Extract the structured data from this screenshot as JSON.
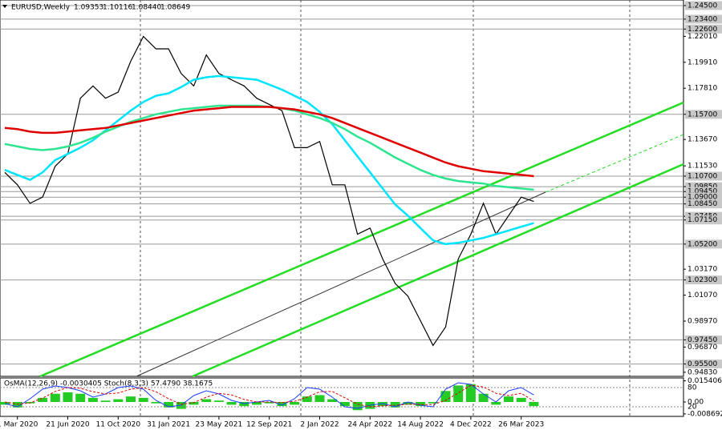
{
  "chart_data": {
    "type": "line",
    "title": "EURUSD,Weekly",
    "quote": [
      "1.09353",
      "1.10116",
      "1.08440",
      "1.08649"
    ],
    "categories": [
      null,
      "1 Mar 2020",
      null,
      null,
      null,
      "21 Jun 2020",
      null,
      null,
      null,
      "11 Oct 2020",
      null,
      null,
      null,
      "31 Jan 2021",
      null,
      null,
      null,
      "23 May 2021",
      null,
      null,
      null,
      "12 Sep 2021",
      null,
      null,
      null,
      "2 Jan 2022",
      null,
      null,
      null,
      "24 Apr 2022",
      null,
      null,
      null,
      "14 Aug 2022",
      null,
      null,
      null,
      "4 Dec 2022",
      null,
      null,
      null,
      "26 Mar 2023",
      null
    ],
    "ylim": [
      0.945,
      1.2495
    ],
    "yticks": [
      {
        "value": 1.2201,
        "label": "1.22010"
      },
      {
        "value": 1.1991,
        "label": "1.19910"
      },
      {
        "value": 1.1781,
        "label": "1.17810"
      },
      {
        "value": 1.1367,
        "label": "1.13670"
      },
      {
        "value": 1.1153,
        "label": "1.11530"
      },
      {
        "value": 1.0317,
        "label": "1.03170"
      },
      {
        "value": 1.0107,
        "label": "1.01070"
      },
      {
        "value": 0.9897,
        "label": "0.98970"
      },
      {
        "value": 0.9687,
        "label": "0.96870"
      },
      {
        "value": 0.9483,
        "label": "0.94830"
      }
    ],
    "levels": [
      {
        "value": 1.245,
        "label": "1.24500"
      },
      {
        "value": 1.234,
        "label": "1.23400"
      },
      {
        "value": 1.226,
        "label": "1.22600"
      },
      {
        "value": 1.157,
        "label": "1.15700"
      },
      {
        "value": 1.107,
        "label": "1.10700"
      },
      {
        "value": 1.0985,
        "label": "1.09850"
      },
      {
        "value": 1.0945,
        "label": "1.09450"
      },
      {
        "value": 1.09,
        "label": "1.09000"
      },
      {
        "value": 1.0845,
        "label": "1.08450"
      },
      {
        "value": 1.0745,
        "label": "1.07450"
      },
      {
        "value": 1.0715,
        "label": "1.07150"
      },
      {
        "value": 1.052,
        "label": "1.05200"
      },
      {
        "value": 1.023,
        "label": "1.02300"
      },
      {
        "value": 0.9745,
        "label": "0.97450"
      },
      {
        "value": 0.955,
        "label": "0.95500"
      }
    ],
    "series": [
      {
        "name": "price",
        "color": "#000000",
        "width": 1.2,
        "values": [
          1.11,
          1.1,
          1.085,
          1.09,
          1.115,
          1.125,
          1.17,
          1.18,
          1.17,
          1.175,
          1.2,
          1.22,
          1.21,
          1.21,
          1.19,
          1.18,
          1.205,
          1.19,
          1.185,
          1.18,
          1.17,
          1.165,
          1.16,
          1.13,
          1.13,
          1.135,
          1.1,
          1.1,
          1.06,
          1.065,
          1.04,
          1.02,
          1.01,
          0.99,
          0.97,
          0.985,
          1.04,
          1.06,
          1.085,
          1.06,
          1.075,
          1.09,
          1.0865
        ]
      },
      {
        "name": "ma-fast",
        "color": "#00e5ff",
        "width": 2.5,
        "values": [
          1.112,
          1.108,
          1.104,
          1.11,
          1.12,
          1.125,
          1.13,
          1.136,
          1.144,
          1.152,
          1.16,
          1.167,
          1.172,
          1.174,
          1.179,
          1.185,
          1.187,
          1.188,
          1.187,
          1.186,
          1.185,
          1.181,
          1.177,
          1.172,
          1.167,
          1.159,
          1.149,
          1.136,
          1.123,
          1.11,
          1.097,
          1.084,
          1.075,
          1.065,
          1.055,
          1.052,
          1.053,
          1.055,
          1.057,
          1.06,
          1.063,
          1.066,
          1.069
        ]
      },
      {
        "name": "ma-mid",
        "color": "#2ee58f",
        "width": 2.5,
        "values": [
          1.133,
          1.131,
          1.129,
          1.128,
          1.129,
          1.131,
          1.134,
          1.138,
          1.143,
          1.147,
          1.151,
          1.154,
          1.157,
          1.159,
          1.161,
          1.162,
          1.163,
          1.164,
          1.164,
          1.164,
          1.164,
          1.163,
          1.162,
          1.16,
          1.157,
          1.154,
          1.15,
          1.145,
          1.139,
          1.134,
          1.128,
          1.122,
          1.117,
          1.112,
          1.108,
          1.105,
          1.103,
          1.102,
          1.101,
          1.099,
          1.098,
          1.097,
          1.096
        ]
      },
      {
        "name": "ma-slow",
        "color": "#e00000",
        "width": 2.5,
        "values": [
          1.146,
          1.145,
          1.143,
          1.142,
          1.142,
          1.143,
          1.144,
          1.145,
          1.146,
          1.148,
          1.15,
          1.152,
          1.154,
          1.156,
          1.158,
          1.16,
          1.161,
          1.162,
          1.163,
          1.163,
          1.163,
          1.163,
          1.162,
          1.161,
          1.159,
          1.157,
          1.154,
          1.15,
          1.146,
          1.142,
          1.138,
          1.134,
          1.13,
          1.126,
          1.122,
          1.118,
          1.115,
          1.113,
          1.111,
          1.11,
          1.109,
          1.108,
          1.107
        ]
      }
    ],
    "oscillator": {
      "label": "OsMA(12,26,9) -0.0030405 Stoch(8,3,3) 57.4790 38.1675",
      "ylim": [
        -0.0105,
        0.0175
      ],
      "yticks": [
        {
          "value": 0.0154064,
          "label": "0.0154064"
        },
        {
          "value": 0,
          "label": "0.00"
        },
        {
          "value": -0.008692,
          "label": "-0.008692"
        }
      ],
      "osma_color": "#22cc22",
      "osma": [
        -0.002,
        -0.004,
        -0.001,
        0.003,
        0.006,
        0.007,
        0.006,
        0.003,
        0.001,
        0.002,
        0.004,
        0.003,
        -0.001,
        -0.004,
        -0.005,
        -0.002,
        0.002,
        0.001,
        -0.002,
        -0.003,
        -0.002,
        -0.001,
        -0.003,
        -0.002,
        0.004,
        0.005,
        0.002,
        -0.003,
        -0.006,
        -0.005,
        -0.003,
        -0.004,
        -0.002,
        -0.003,
        -0.001,
        0.008,
        0.012,
        0.013,
        0.006,
        -0.002,
        0.004,
        0.003,
        -0.003
      ],
      "stoch_lim": [
        -10,
        110
      ],
      "stoch_ticks": [
        80,
        20
      ],
      "stoch": [
        {
          "color": "#1a3cff",
          "values": [
            30,
            20,
            45,
            75,
            85,
            80,
            70,
            50,
            60,
            80,
            85,
            75,
            40,
            20,
            25,
            55,
            70,
            60,
            40,
            30,
            35,
            40,
            25,
            45,
            80,
            75,
            50,
            20,
            15,
            25,
            30,
            20,
            35,
            25,
            20,
            75,
            95,
            90,
            60,
            35,
            70,
            80,
            57
          ]
        },
        {
          "color": "#e00000",
          "values": [
            35,
            28,
            32,
            47,
            68,
            80,
            78,
            67,
            60,
            63,
            75,
            80,
            67,
            45,
            28,
            33,
            50,
            62,
            57,
            43,
            35,
            35,
            33,
            37,
            50,
            67,
            68,
            48,
            28,
            20,
            23,
            25,
            28,
            27,
            27,
            40,
            63,
            87,
            82,
            62,
            55,
            62,
            38
          ]
        }
      ]
    }
  }
}
